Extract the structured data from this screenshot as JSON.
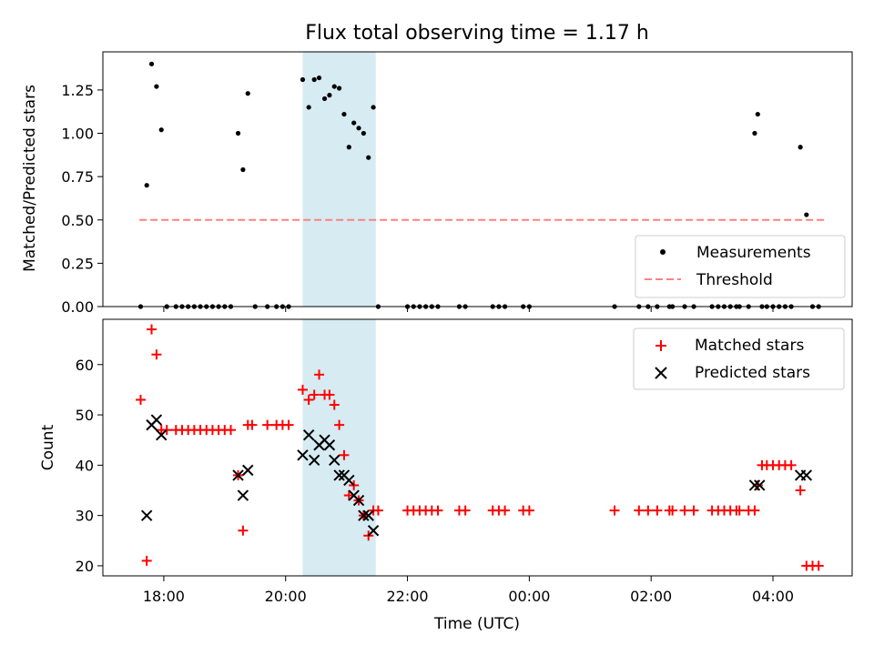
{
  "chart_data": [
    {
      "type": "scatter",
      "title": "Flux total observing time = 1.17 h",
      "ylabel": "Matched/Predicted stars",
      "xlabel": "",
      "ylim": [
        0,
        1.47
      ],
      "yticks": [
        "0.00",
        "0.25",
        "0.50",
        "0.75",
        "1.00",
        "1.25"
      ],
      "ytick_values": [
        0,
        0.25,
        0.5,
        0.75,
        1.0,
        1.25
      ],
      "highlight_span_hours": [
        20.28,
        21.48
      ],
      "legend_position": "lower-right",
      "legend": [
        "Measurements",
        "Threshold"
      ],
      "threshold": {
        "name": "Threshold",
        "y": 0.5,
        "x_range": [
          17.6,
          28.9
        ],
        "color": "#ff8080"
      },
      "measurements": {
        "name": "Measurements",
        "color": "#000000",
        "x": [
          17.62,
          17.72,
          17.8,
          17.88,
          17.96,
          18.05,
          18.2,
          18.3,
          18.4,
          18.5,
          18.6,
          18.7,
          18.8,
          18.9,
          19.0,
          19.1,
          19.22,
          19.3,
          19.38,
          19.5,
          19.7,
          19.85,
          19.95,
          20.05,
          20.28,
          20.38,
          20.47,
          20.55,
          20.64,
          20.72,
          20.8,
          20.88,
          20.96,
          21.04,
          21.12,
          21.2,
          21.28,
          21.36,
          21.44,
          21.52,
          22.0,
          22.1,
          22.2,
          22.3,
          22.4,
          22.5,
          22.85,
          22.95,
          23.4,
          23.5,
          23.6,
          23.9,
          24.0,
          25.4,
          25.8,
          25.95,
          26.1,
          26.3,
          26.35,
          26.55,
          26.7,
          27.0,
          27.1,
          27.2,
          27.3,
          27.4,
          27.45,
          27.6,
          27.7,
          27.75,
          27.82,
          27.9,
          28.0,
          28.1,
          28.2,
          28.3,
          28.45,
          28.55,
          28.65,
          28.75
        ],
        "y": [
          0,
          0.7,
          1.4,
          1.27,
          1.02,
          0,
          0,
          0,
          0,
          0,
          0,
          0,
          0,
          0,
          0,
          0,
          1.0,
          0.79,
          1.23,
          0,
          0,
          0,
          0,
          0,
          1.31,
          1.15,
          1.31,
          1.32,
          1.2,
          1.22,
          1.27,
          1.26,
          1.11,
          0.92,
          1.06,
          1.03,
          1.0,
          0.86,
          1.15,
          0,
          0,
          0,
          0,
          0,
          0,
          0,
          0,
          0,
          0,
          0,
          0,
          0,
          0,
          0,
          0,
          0,
          0,
          0,
          0,
          0,
          0,
          0,
          0,
          0,
          0,
          0,
          0,
          0,
          1.0,
          1.11,
          0,
          0,
          0,
          0,
          0,
          0,
          0.92,
          0.53,
          0,
          0
        ]
      }
    },
    {
      "type": "scatter",
      "title": "",
      "ylabel": "Count",
      "xlabel": "Time (UTC)",
      "ylim": [
        18,
        69
      ],
      "yticks": [
        "20",
        "30",
        "40",
        "50",
        "60"
      ],
      "ytick_values": [
        20,
        30,
        40,
        50,
        60
      ],
      "xlim_hours": [
        17.0,
        29.3
      ],
      "xticks": [
        "18:00",
        "20:00",
        "22:00",
        "00:00",
        "02:00",
        "04:00"
      ],
      "xtick_hours": [
        18,
        20,
        22,
        24,
        26,
        28
      ],
      "highlight_span_hours": [
        20.28,
        21.48
      ],
      "legend_position": "top-right",
      "legend": [
        "Matched stars",
        "Predicted stars"
      ],
      "series": [
        {
          "name": "Matched stars",
          "marker": "plus",
          "color": "#ff0000",
          "x": [
            17.62,
            17.72,
            17.8,
            17.88,
            17.96,
            18.05,
            18.2,
            18.3,
            18.4,
            18.5,
            18.6,
            18.7,
            18.8,
            18.9,
            19.0,
            19.1,
            19.22,
            19.3,
            19.38,
            19.45,
            19.7,
            19.85,
            19.95,
            20.05,
            20.28,
            20.38,
            20.47,
            20.55,
            20.64,
            20.72,
            20.8,
            20.88,
            20.96,
            21.04,
            21.12,
            21.2,
            21.28,
            21.36,
            21.44,
            21.52,
            22.0,
            22.1,
            22.2,
            22.3,
            22.4,
            22.5,
            22.85,
            22.95,
            23.4,
            23.5,
            23.6,
            23.9,
            24.0,
            25.4,
            25.8,
            25.95,
            26.1,
            26.3,
            26.35,
            26.55,
            26.7,
            27.0,
            27.1,
            27.2,
            27.3,
            27.4,
            27.45,
            27.6,
            27.7,
            27.75,
            27.82,
            27.9,
            28.0,
            28.1,
            28.2,
            28.3,
            28.45,
            28.55,
            28.65,
            28.75
          ],
          "y": [
            53,
            21,
            67,
            62,
            47,
            47,
            47,
            47,
            47,
            47,
            47,
            47,
            47,
            47,
            47,
            47,
            38,
            27,
            48,
            48,
            48,
            48,
            48,
            48,
            55,
            53,
            54,
            58,
            54,
            54,
            52,
            48,
            42,
            34,
            36,
            33,
            30,
            26,
            31,
            31,
            31,
            31,
            31,
            31,
            31,
            31,
            31,
            31,
            31,
            31,
            31,
            31,
            31,
            31,
            31,
            31,
            31,
            31,
            31,
            31,
            31,
            31,
            31,
            31,
            31,
            31,
            31,
            31,
            31,
            36,
            40,
            40,
            40,
            40,
            40,
            40,
            35,
            20,
            20,
            20
          ]
        },
        {
          "name": "Predicted stars",
          "marker": "x",
          "color": "#000000",
          "x": [
            17.72,
            17.8,
            17.88,
            17.96,
            19.22,
            19.3,
            19.38,
            20.28,
            20.38,
            20.47,
            20.55,
            20.64,
            20.72,
            20.8,
            20.88,
            20.96,
            21.04,
            21.12,
            21.2,
            21.28,
            21.36,
            21.44,
            27.7,
            27.78,
            28.45,
            28.55
          ],
          "y": [
            30,
            48,
            49,
            46,
            38,
            34,
            39,
            42,
            46,
            41,
            44,
            45,
            44,
            41,
            38,
            38,
            37,
            34,
            33,
            30,
            30,
            27,
            36,
            36,
            38,
            38
          ]
        }
      ]
    }
  ]
}
